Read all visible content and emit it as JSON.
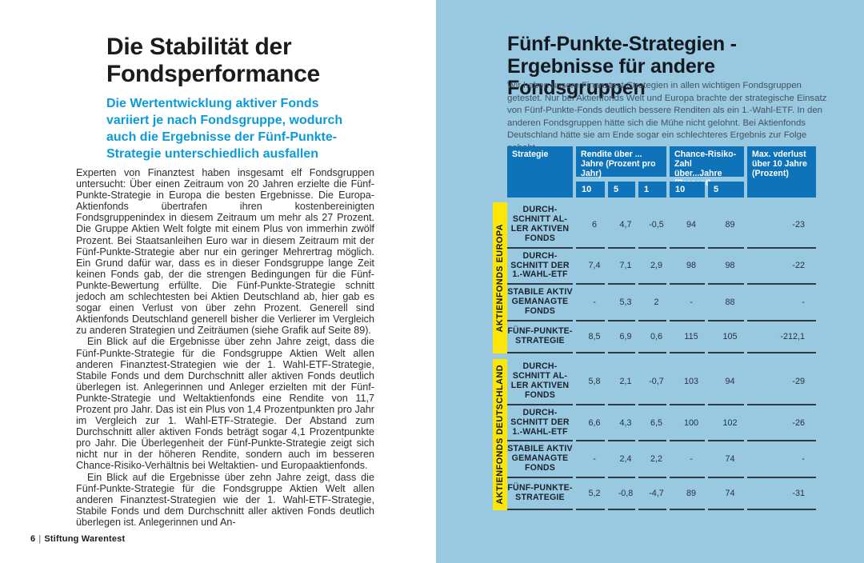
{
  "left_page": {
    "title": "Die Stabilität der\nFondsperformance",
    "subtitle": "Die Wertentwicklung aktiver Fonds variiert je nach Fondsgruppe, wodurch auch die Ergebnisse der Fünf-Punkte-Strategie unterschiedlich ausfallen",
    "paragraphs": [
      "Experten von Finanztest haben insgesamt elf Fondsgruppen untersucht: Über einen Zeitraum von 20 Jahren erzielte die Fünf-Punkte-Strategie in Europa die besten Ergebnisse. Die Europa-Aktienfonds übertrafen ihren kostenbereinigten Fondsgruppenindex in diesem Zeitraum um mehr als 27 Prozent. Die Gruppe Aktien Welt folgte mit einem Plus von immerhin zwölf Prozent. Bei Staatsanleihen Euro war in diesem Zeitraum mit der Fünf-Punkte-Strategie aber nur ein geringer Mehrertrag möglich. Ein Grund dafür war, dass es in dieser Fondsgruppe lange Zeit keinen Fonds gab, der die strengen Bedingungen für die Fünf-Punkte-Bewertung erfüllte. Die Fünf-Punkte-Strategie schnitt jedoch am schlechtesten bei Aktien Deutschland ab, hier gab es sogar einen Verlust von über zehn Prozent. Generell sind Aktienfonds Deutschland generell bisher die Verlierer im Vergleich zu anderen Strategien und Zeiträumen (siehe Grafik auf Seite 89).",
      "Ein Blick auf die Ergebnisse über zehn Jahre zeigt, dass die Fünf-Punkte-Strategie für die Fondsgruppe Aktien Welt allen anderen Finanztest-Strategien wie der 1. Wahl-ETF-Strategie, Stabile Fonds und dem Durchschnitt aller aktiven Fonds deutlich überlegen ist. Anlegerinnen und Anleger erzielten mit der Fünf-Punkte-Strategie und Weltaktienfonds eine Rendite von 11,7 Prozent pro Jahr. Das ist ein Plus von 1,4 Prozentpunkten pro Jahr im Vergleich zur 1. Wahl-ETF-Strategie. Der Abstand zum Durchschnitt aller aktiven Fonds beträgt sogar 4,1 Prozentpunkte pro Jahr. Die Überlegenheit der Fünf-Punkte-Strategie zeigt sich nicht nur in der höheren Rendite, sondern auch im besseren Chance-Risiko-Verhältnis bei Weltaktien- und Europaaktienfonds.",
      "Ein Blick auf die Ergebnisse über zehn Jahre zeigt, dass die Fünf-Punkte-Strategie für die Fondsgruppe Aktien Welt allen anderen Finanztest-Strategien wie der 1. Wahl-ETF-Strategie, Stabile Fonds und dem Durchschnitt aller aktiven Fonds deutlich überlegen ist. Anlegerinnen und An-"
    ],
    "footer": {
      "page": "6",
      "divider": "|",
      "brand": "Stiftung Warentest"
    }
  },
  "right_panel": {
    "title": "Fünf-Punkte-Strategien -\nErgebnisse für andere Fondsgruppen",
    "intro": "Wir haben unsere Finanztest-Strategien in allen wichtigen Fondsgruppen getestet. Nur bei Aktienfonds Welt und Europa brachte der strategische Einsatz von Fünf-Punkte-Fonds deutlich bessere Renditen als ein 1.-Wahl-ETF. In den anderen Fondsgruppen hätte sich die Mühe nicht gelohnt. Bei Aktienfonds Deutschland hätte sie am Ende sogar ein schlechteres Ergebnis zur Folge gehabt.",
    "table": {
      "headers": {
        "strategie": "Strategie",
        "rendite_group": "Rendite über ... Jahre (Prozent pro Jahr)",
        "rendite_sub": [
          "10",
          "5",
          "1"
        ],
        "chance_group": "Chance-Risiko-Zahl über...Jahre (Prozent)",
        "chance_sub": [
          "10",
          "5"
        ],
        "max_verlust": "Max. vderlust über 10 Jahre (Prozent)"
      },
      "sections": [
        {
          "band_label": "AKTIENFONDS EUROPA",
          "rows": [
            {
              "label": "DURCH-\nSCHNITT AL-\nLER AKTIVEN\nFONDS",
              "values": [
                "6",
                "4,7",
                "-0,5",
                "94",
                "89",
                "-23"
              ]
            },
            {
              "label": "DURCH-\nSCHNITT DER\n1.-WAHL-ETF",
              "values": [
                "7,4",
                "7,1",
                "2,9",
                "98",
                "98",
                "-22"
              ]
            },
            {
              "label": "STABILE AKTIV\nGEMANAGTE\nFONDS",
              "values": [
                "-",
                "5,3",
                "2",
                "-",
                "88",
                "-"
              ]
            },
            {
              "label": "FÜNF-PUNKTE-\nSTRATEGIE",
              "values": [
                "8,5",
                "6,9",
                "0,6",
                "115",
                "105",
                "-212,1"
              ]
            }
          ]
        },
        {
          "band_label": "AKTIENFONDS DEUTSCHLAND",
          "rows": [
            {
              "label": "DURCH-\nSCHNITT AL-\nLER AKTIVEN\nFONDS",
              "values": [
                "5,8",
                "2,1",
                "-0,7",
                "103",
                "94",
                "-29"
              ]
            },
            {
              "label": "DURCH-\nSCHNITT DER\n1.-WAHL-ETF",
              "values": [
                "6,6",
                "4,3",
                "6,5",
                "100",
                "102",
                "-26"
              ]
            },
            {
              "label": "STABILE AKTIV\nGEMANAGTE\nFONDS",
              "values": [
                "-",
                "2,4",
                "2,2",
                "-",
                "74",
                "-"
              ]
            },
            {
              "label": "FÜNF-PUNKTE-\nSTRATEGIE",
              "values": [
                "5,2",
                "-0,8",
                "-4,7",
                "89",
                "74",
                "-31"
              ]
            }
          ]
        }
      ]
    },
    "colors": {
      "panel_bg": "#99c9e1",
      "header_blue": "#0e73b8",
      "band_yellow": "#fde70a",
      "separator": "#2d3945",
      "subtitle_blue": "#0b9bd8"
    }
  }
}
